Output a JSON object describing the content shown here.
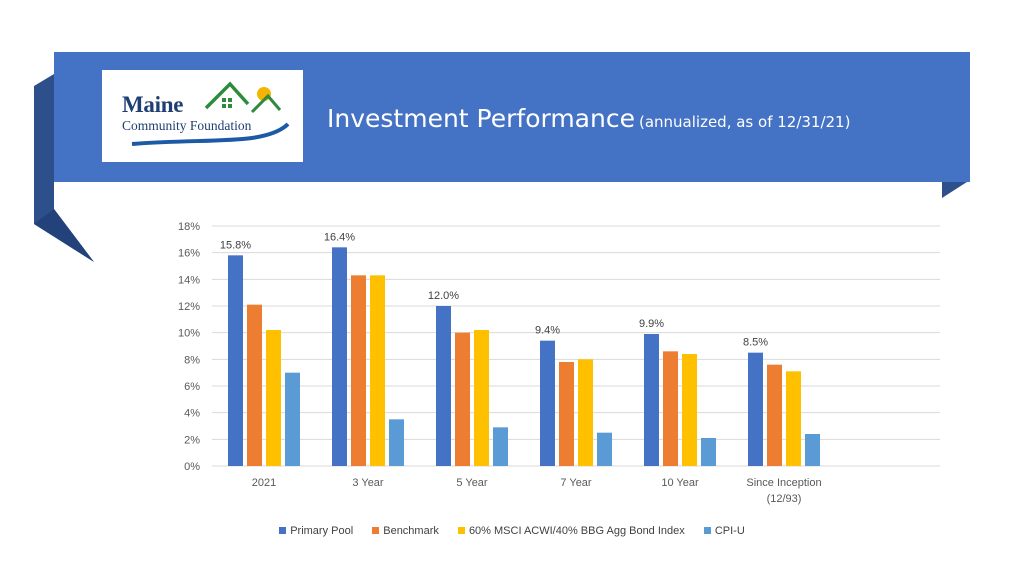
{
  "header": {
    "title": "Investment Performance",
    "subtitle": "(annualized, as of 12/31/21)",
    "banner_color": "#4472C4"
  },
  "logo": {
    "line1": "Maine",
    "line2": "Community Foundation",
    "colors": {
      "text": "#1f3e73",
      "house_green": "#2e8b3e",
      "sun": "#f4b400",
      "river": "#1c5aa6"
    }
  },
  "chart_data": {
    "type": "bar",
    "categories": [
      "2021",
      "3 Year",
      "5 Year",
      "7 Year",
      "10 Year",
      [
        "Since Inception",
        "(12/93)"
      ]
    ],
    "series": [
      {
        "name": "Primary Pool",
        "color": "#4472C4",
        "values": [
          15.8,
          16.4,
          12.0,
          9.4,
          9.9,
          8.5
        ]
      },
      {
        "name": "Benchmark",
        "color": "#ED7D31",
        "values": [
          12.1,
          14.3,
          10.0,
          7.8,
          8.6,
          7.6
        ]
      },
      {
        "name": "60% MSCI ACWI/40% BBG Agg Bond Index",
        "color": "#FFC000",
        "values": [
          10.2,
          14.3,
          10.2,
          8.0,
          8.4,
          7.1
        ]
      },
      {
        "name": "CPI-U",
        "color": "#5B9BD5",
        "values": [
          7.0,
          3.5,
          2.9,
          2.5,
          2.1,
          2.4
        ]
      }
    ],
    "data_labels": [
      "15.8%",
      "16.4%",
      "12.0%",
      "9.4%",
      "9.9%",
      "8.5%"
    ],
    "yticks": [
      "0%",
      "2%",
      "4%",
      "6%",
      "8%",
      "10%",
      "12%",
      "14%",
      "16%",
      "18%"
    ],
    "ylim": [
      0,
      18
    ],
    "grid": true,
    "legend_position": "bottom"
  }
}
